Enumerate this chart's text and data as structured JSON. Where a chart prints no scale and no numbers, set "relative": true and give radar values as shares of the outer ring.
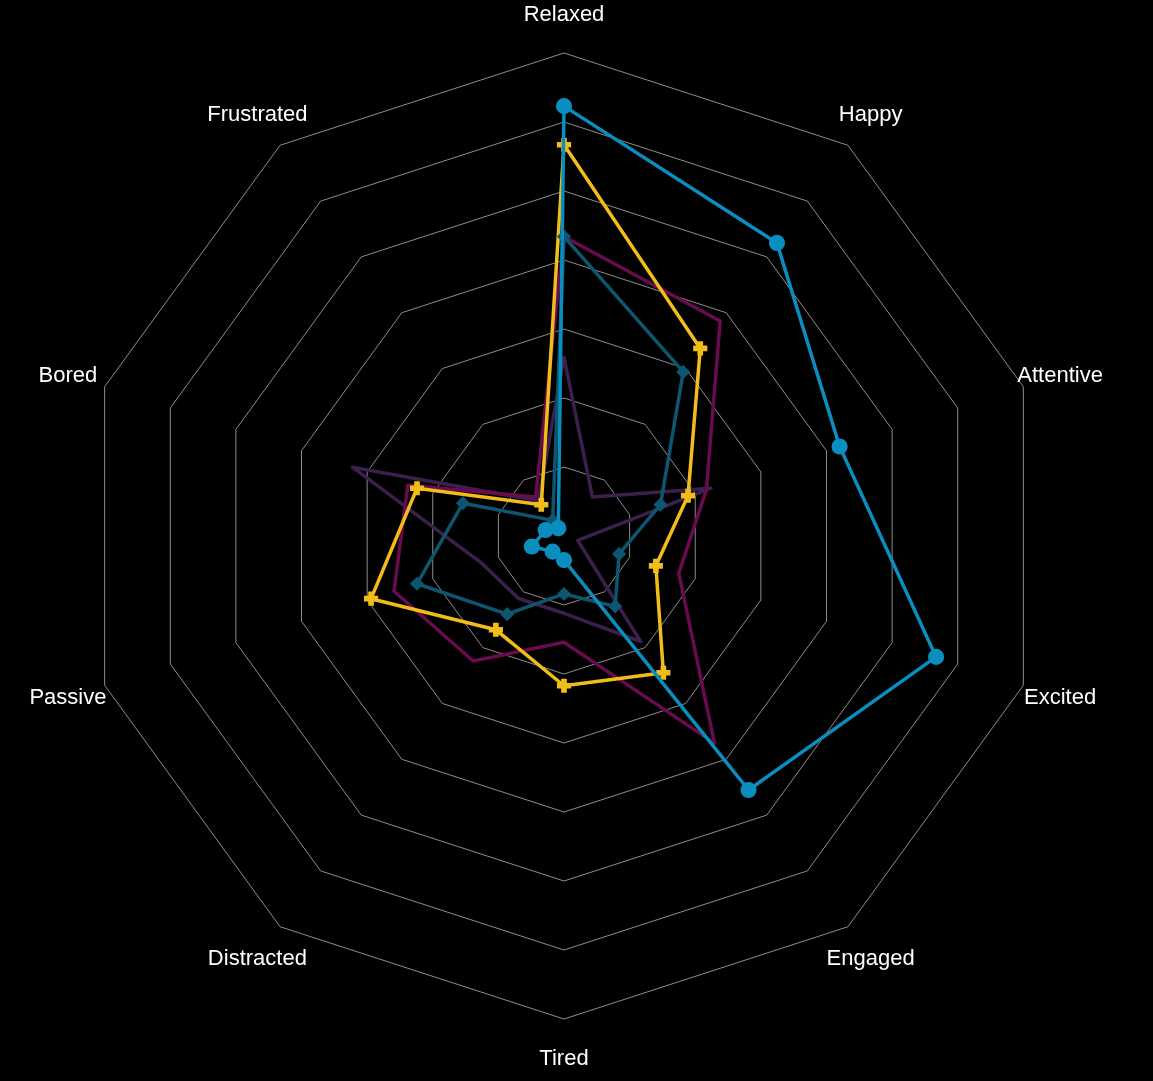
{
  "chart_data": {
    "type": "radar",
    "relative": true,
    "grid": true,
    "categories": [
      "Relaxed",
      "Happy",
      "Attentive",
      "Excited",
      "Engaged",
      "Tired",
      "Distracted",
      "Passive",
      "Bored",
      "Frustrated"
    ],
    "series": [
      {
        "color": "#3b1f4c",
        "marker": "none",
        "values": [
          0.37,
          0.1,
          0.32,
          0.03,
          0.27,
          0.16,
          0.16,
          0.18,
          0.46,
          0.09
        ]
      },
      {
        "color": "#6a0a4f",
        "marker": "none",
        "values": [
          0.62,
          0.55,
          0.31,
          0.25,
          0.53,
          0.22,
          0.32,
          0.37,
          0.34,
          0.1
        ]
      },
      {
        "color": "#f2bc1b",
        "marker": "cross",
        "values": [
          0.81,
          0.48,
          0.27,
          0.2,
          0.35,
          0.31,
          0.24,
          0.42,
          0.32,
          0.08
        ]
      },
      {
        "color": "#0d5670",
        "marker": "diamond",
        "values": [
          0.62,
          0.42,
          0.21,
          0.12,
          0.18,
          0.12,
          0.2,
          0.32,
          0.22,
          0.04
        ]
      },
      {
        "color": "#0a8dbf",
        "marker": "circle",
        "values": [
          0.89,
          0.75,
          0.6,
          0.81,
          0.65,
          0.05,
          0.04,
          0.07,
          0.04,
          0.02
        ]
      }
    ]
  }
}
